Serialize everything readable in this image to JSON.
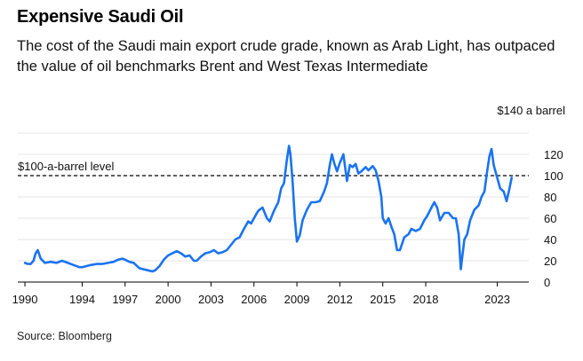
{
  "header": {
    "title": "Expensive Saudi Oil",
    "subtitle": "The cost of the Saudi main export crude grade, known as Arab Light, has outpaced the value of oil benchmarks Brent and West Texas Intermediate"
  },
  "footer": {
    "source": "Source: Bloomberg"
  },
  "colors": {
    "line": "#1a73f0",
    "grid": "#e6e6e6",
    "reference": "#000000",
    "axis": "#000000"
  },
  "chart_data": {
    "type": "line",
    "title": "Expensive Saudi Oil",
    "xlabel": "",
    "ylabel": "",
    "xlim": [
      1989.5,
      2025.2
    ],
    "ylim": [
      0,
      140
    ],
    "grid": true,
    "x_ticks": [
      1990,
      1994,
      1997,
      2000,
      2003,
      2006,
      2009,
      2012,
      2015,
      2018,
      2023
    ],
    "x_tick_labels": [
      "1990",
      "1994",
      "1997",
      "2000",
      "2003",
      "2006",
      "2009",
      "2012",
      "2015",
      "2018",
      "2023"
    ],
    "y_ticks": [
      0,
      20,
      40,
      60,
      80,
      100,
      120,
      140
    ],
    "y_tick_labels": [
      "0",
      "20",
      "40",
      "60",
      "80",
      "100",
      "120",
      "$140 a barrel"
    ],
    "reference_line": {
      "value": 100,
      "label": "$100-a-barrel level",
      "style": "dashed"
    },
    "series": [
      {
        "name": "Arab Light",
        "x": [
          1990.0,
          1990.2,
          1990.4,
          1990.6,
          1990.75,
          1990.9,
          1991.1,
          1991.4,
          1991.8,
          1992.2,
          1992.6,
          1993.0,
          1993.4,
          1993.8,
          1994.0,
          1994.3,
          1994.6,
          1995.0,
          1995.4,
          1995.8,
          1996.2,
          1996.5,
          1996.8,
          1997.0,
          1997.3,
          1997.6,
          1998.0,
          1998.3,
          1998.6,
          1998.9,
          1999.1,
          1999.4,
          1999.7,
          2000.0,
          2000.3,
          2000.6,
          2000.9,
          2001.2,
          2001.5,
          2001.8,
          2002.0,
          2002.3,
          2002.6,
          2002.9,
          2003.2,
          2003.5,
          2003.8,
          2004.1,
          2004.4,
          2004.7,
          2005.0,
          2005.3,
          2005.6,
          2005.8,
          2006.0,
          2006.3,
          2006.6,
          2006.9,
          2007.1,
          2007.4,
          2007.7,
          2007.9,
          2008.1,
          2008.3,
          2008.45,
          2008.55,
          2008.7,
          2008.85,
          2009.0,
          2009.2,
          2009.4,
          2009.7,
          2010.0,
          2010.3,
          2010.6,
          2010.9,
          2011.1,
          2011.3,
          2011.45,
          2011.6,
          2011.8,
          2012.0,
          2012.25,
          2012.5,
          2012.7,
          2012.9,
          2013.1,
          2013.3,
          2013.5,
          2013.8,
          2014.0,
          2014.3,
          2014.5,
          2014.7,
          2014.9,
          2015.0,
          2015.2,
          2015.4,
          2015.6,
          2015.8,
          2016.0,
          2016.2,
          2016.5,
          2016.8,
          2017.0,
          2017.3,
          2017.6,
          2017.9,
          2018.1,
          2018.4,
          2018.6,
          2018.8,
          2019.0,
          2019.3,
          2019.6,
          2019.9,
          2020.1,
          2020.3,
          2020.45,
          2020.7,
          2020.9,
          2021.1,
          2021.4,
          2021.7,
          2021.9,
          2022.1,
          2022.3,
          2022.45,
          2022.6,
          2022.75,
          2022.95,
          2023.2,
          2023.45,
          2023.65,
          2023.85,
          2024.0
        ],
        "values": [
          18,
          17,
          17,
          20,
          27,
          30,
          22,
          18,
          19,
          18,
          20,
          18,
          16,
          14,
          14,
          15,
          16,
          17,
          17,
          18,
          19,
          21,
          22,
          21,
          19,
          18,
          13,
          12,
          11,
          10,
          11,
          15,
          21,
          25,
          27,
          29,
          27,
          24,
          25,
          20,
          20,
          24,
          27,
          28,
          30,
          27,
          28,
          30,
          35,
          40,
          42,
          50,
          57,
          55,
          60,
          67,
          70,
          60,
          57,
          67,
          75,
          88,
          93,
          115,
          128,
          120,
          95,
          60,
          38,
          44,
          58,
          68,
          75,
          75,
          76,
          85,
          93,
          110,
          120,
          112,
          104,
          112,
          120,
          95,
          110,
          108,
          111,
          102,
          104,
          108,
          105,
          109,
          105,
          95,
          80,
          60,
          55,
          60,
          52,
          45,
          30,
          30,
          42,
          45,
          50,
          48,
          50,
          58,
          62,
          70,
          75,
          70,
          58,
          65,
          65,
          60,
          60,
          45,
          12,
          40,
          45,
          58,
          68,
          72,
          80,
          85,
          105,
          118,
          125,
          110,
          100,
          88,
          85,
          76,
          88,
          98
        ]
      }
    ]
  }
}
